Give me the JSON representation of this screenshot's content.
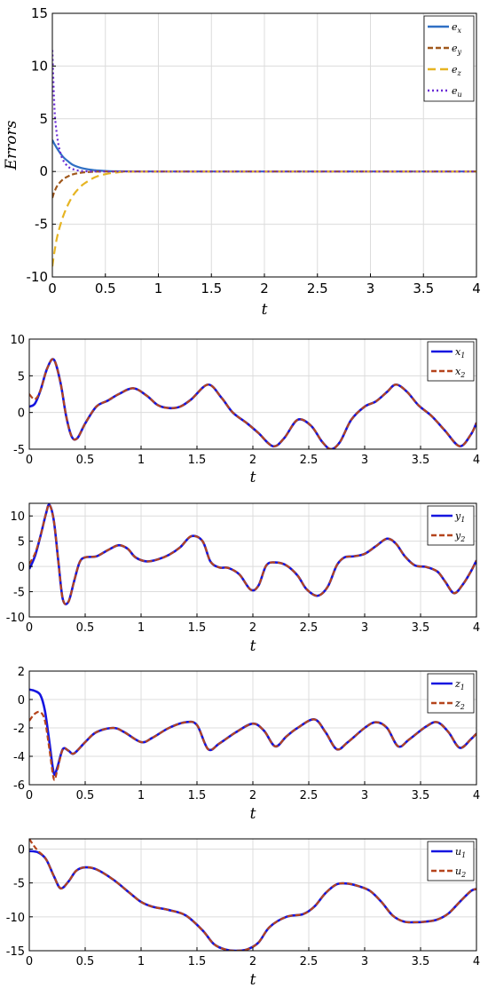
{
  "chart_data": [
    {
      "type": "line",
      "xlabel": "t",
      "ylabel": "Errors",
      "xlim": [
        0,
        4
      ],
      "ylim": [
        -10,
        15
      ],
      "xticks": [
        "0",
        "0.5",
        "1",
        "1.5",
        "2",
        "2.5",
        "3",
        "3.5",
        "4"
      ],
      "yticks": [
        "-10",
        "-5",
        "0",
        "5",
        "10",
        "15"
      ],
      "grid": true,
      "legend_position": "top-right",
      "series": [
        {
          "name": "e",
          "sub": "x",
          "color": "#2f6fc4",
          "style": "solid",
          "x": [
            0,
            0.02,
            0.05,
            0.1,
            0.15,
            0.2,
            0.3,
            0.4,
            0.5,
            0.6,
            1,
            2,
            3,
            4
          ],
          "y": [
            3.0,
            2.6,
            2.1,
            1.4,
            0.95,
            0.6,
            0.27,
            0.12,
            0.05,
            0.02,
            0,
            0,
            0,
            0
          ]
        },
        {
          "name": "e",
          "sub": "y",
          "color": "#a0581c",
          "style": "dash",
          "x": [
            0,
            0.02,
            0.05,
            0.1,
            0.15,
            0.2,
            0.3,
            0.4,
            0.5,
            1,
            2,
            3,
            4
          ],
          "y": [
            -2.5,
            -1.9,
            -1.3,
            -0.75,
            -0.45,
            -0.25,
            -0.08,
            -0.02,
            0,
            0,
            0,
            0,
            0
          ]
        },
        {
          "name": "e",
          "sub": "z",
          "color": "#e6b422",
          "style": "longdash",
          "x": [
            0,
            0.02,
            0.05,
            0.1,
            0.15,
            0.2,
            0.25,
            0.3,
            0.4,
            0.5,
            0.6,
            0.7,
            1,
            2,
            3,
            4
          ],
          "y": [
            -9.0,
            -7.6,
            -6.0,
            -4.3,
            -3.1,
            -2.2,
            -1.6,
            -1.15,
            -0.55,
            -0.25,
            -0.1,
            -0.03,
            0,
            0,
            0,
            0
          ]
        },
        {
          "name": "e",
          "sub": "u",
          "color": "#6a2bd6",
          "style": "dot",
          "x": [
            0,
            0.01,
            0.02,
            0.03,
            0.05,
            0.07,
            0.1,
            0.15,
            0.2,
            0.25,
            0.3,
            0.4,
            0.5,
            1,
            2,
            3,
            4
          ],
          "y": [
            11.5,
            8.5,
            6.0,
            4.6,
            3.0,
            2.0,
            1.1,
            0.45,
            0.2,
            0.08,
            0.03,
            0,
            0,
            0,
            0,
            0,
            0
          ]
        }
      ]
    },
    {
      "type": "line",
      "xlabel": "t",
      "xlim": [
        0,
        4
      ],
      "ylim": [
        -5,
        10
      ],
      "xticks": [
        "0",
        "0.5",
        "1",
        "1.5",
        "2",
        "2.5",
        "3",
        "3.5",
        "4"
      ],
      "yticks": [
        "-5",
        "0",
        "5",
        "10"
      ],
      "grid": true,
      "legend_position": "top-right",
      "series": [
        {
          "name": "x",
          "sub": "1",
          "color": "#1515e0",
          "style": "solid",
          "x": [
            0,
            0.05,
            0.1,
            0.16,
            0.22,
            0.28,
            0.33,
            0.38,
            0.43,
            0.5,
            0.6,
            0.7,
            0.8,
            0.93,
            1.05,
            1.15,
            1.25,
            1.35,
            1.45,
            1.6,
            1.72,
            1.82,
            1.95,
            2.05,
            2.18,
            2.28,
            2.4,
            2.52,
            2.62,
            2.7,
            2.78,
            2.88,
            3.0,
            3.1,
            3.2,
            3.28,
            3.38,
            3.48,
            3.6,
            3.72,
            3.85,
            3.95,
            4.0
          ],
          "y": [
            0.8,
            1.2,
            3.0,
            6.0,
            7.2,
            4.0,
            -0.5,
            -3.3,
            -3.5,
            -1.5,
            0.8,
            1.6,
            2.5,
            3.3,
            2.3,
            1.0,
            0.6,
            0.8,
            1.8,
            3.8,
            2.0,
            0.0,
            -1.5,
            -2.8,
            -4.6,
            -3.5,
            -1.0,
            -1.8,
            -4.0,
            -5.0,
            -4.0,
            -1.0,
            0.8,
            1.5,
            2.8,
            3.8,
            2.8,
            1.0,
            -0.5,
            -2.5,
            -4.6,
            -3.0,
            -1.4
          ]
        },
        {
          "name": "x",
          "sub": "2",
          "color": "#b5441c",
          "style": "dash",
          "x": [
            0,
            0.05,
            0.1,
            0.16,
            0.22,
            0.28,
            0.33,
            0.38,
            0.43,
            0.5,
            0.6,
            0.7,
            0.8,
            0.93,
            1.05,
            1.15,
            1.25,
            1.35,
            1.45,
            1.6,
            1.72,
            1.82,
            1.95,
            2.05,
            2.18,
            2.28,
            2.4,
            2.52,
            2.62,
            2.7,
            2.78,
            2.88,
            3.0,
            3.1,
            3.2,
            3.28,
            3.38,
            3.48,
            3.6,
            3.72,
            3.85,
            3.95,
            4.0
          ],
          "y": [
            2.5,
            1.8,
            3.0,
            6.0,
            7.2,
            4.0,
            -0.5,
            -3.3,
            -3.5,
            -1.5,
            0.8,
            1.6,
            2.5,
            3.3,
            2.3,
            1.0,
            0.6,
            0.8,
            1.8,
            3.8,
            2.0,
            0.0,
            -1.5,
            -2.8,
            -4.6,
            -3.5,
            -1.0,
            -1.8,
            -4.0,
            -5.0,
            -4.0,
            -1.0,
            0.8,
            1.5,
            2.8,
            3.8,
            2.8,
            1.0,
            -0.5,
            -2.5,
            -4.6,
            -3.0,
            -1.4
          ]
        }
      ]
    },
    {
      "type": "line",
      "xlabel": "t",
      "xlim": [
        0,
        4
      ],
      "ylim": [
        -10,
        12.5
      ],
      "xticks": [
        "0",
        "0.5",
        "1",
        "1.5",
        "2",
        "2.5",
        "3",
        "3.5",
        "4"
      ],
      "yticks": [
        "-10",
        "-5",
        "0",
        "5",
        "10"
      ],
      "grid": true,
      "legend_position": "top-right",
      "series": [
        {
          "name": "y",
          "sub": "1",
          "color": "#1515e0",
          "style": "solid",
          "x": [
            0,
            0.05,
            0.1,
            0.15,
            0.18,
            0.22,
            0.26,
            0.3,
            0.35,
            0.4,
            0.45,
            0.5,
            0.6,
            0.7,
            0.8,
            0.88,
            0.95,
            1.05,
            1.15,
            1.25,
            1.35,
            1.45,
            1.55,
            1.62,
            1.7,
            1.78,
            1.88,
            1.98,
            2.05,
            2.12,
            2.2,
            2.3,
            2.4,
            2.48,
            2.58,
            2.67,
            2.75,
            2.82,
            2.9,
            3.0,
            3.1,
            3.2,
            3.28,
            3.36,
            3.45,
            3.55,
            3.65,
            3.72,
            3.8,
            3.88,
            3.95,
            4.0
          ],
          "y": [
            -0.5,
            2.0,
            6.0,
            10.5,
            12.2,
            9.0,
            1.0,
            -6.5,
            -7.0,
            -3.0,
            0.8,
            1.8,
            2.0,
            3.2,
            4.2,
            3.5,
            1.8,
            1.0,
            1.4,
            2.3,
            3.8,
            6.0,
            5.0,
            1.0,
            -0.2,
            -0.3,
            -1.6,
            -4.6,
            -3.8,
            0.2,
            0.8,
            0.2,
            -1.8,
            -4.5,
            -5.8,
            -4.0,
            0.2,
            1.8,
            2.0,
            2.5,
            4.0,
            5.5,
            4.5,
            2.0,
            0.2,
            -0.1,
            -1.0,
            -3.0,
            -5.3,
            -3.5,
            -1.0,
            1.2
          ]
        },
        {
          "name": "y",
          "sub": "2",
          "color": "#b5441c",
          "style": "dash",
          "x": [
            0,
            0.05,
            0.1,
            0.15,
            0.18,
            0.22,
            0.26,
            0.3,
            0.35,
            0.4,
            0.45,
            0.5,
            0.6,
            0.7,
            0.8,
            0.88,
            0.95,
            1.05,
            1.15,
            1.25,
            1.35,
            1.45,
            1.55,
            1.62,
            1.7,
            1.78,
            1.88,
            1.98,
            2.05,
            2.12,
            2.2,
            2.3,
            2.4,
            2.48,
            2.58,
            2.67,
            2.75,
            2.82,
            2.9,
            3.0,
            3.1,
            3.2,
            3.28,
            3.36,
            3.45,
            3.55,
            3.65,
            3.72,
            3.8,
            3.88,
            3.95,
            4.0
          ],
          "y": [
            0.5,
            2.5,
            6.0,
            10.5,
            12.2,
            9.0,
            1.0,
            -6.5,
            -7.0,
            -3.0,
            0.8,
            1.8,
            2.0,
            3.2,
            4.2,
            3.5,
            1.8,
            1.0,
            1.4,
            2.3,
            3.8,
            6.0,
            5.0,
            1.0,
            -0.2,
            -0.3,
            -1.6,
            -4.6,
            -3.8,
            0.2,
            0.8,
            0.2,
            -1.8,
            -4.5,
            -5.8,
            -4.0,
            0.2,
            1.8,
            2.0,
            2.5,
            4.0,
            5.5,
            4.5,
            2.0,
            0.2,
            -0.1,
            -1.0,
            -3.0,
            -5.3,
            -3.5,
            -1.0,
            1.2
          ]
        }
      ]
    },
    {
      "type": "line",
      "xlabel": "t",
      "xlim": [
        0,
        4
      ],
      "ylim": [
        -6,
        2
      ],
      "xticks": [
        "0",
        "0.5",
        "1",
        "1.5",
        "2",
        "2.5",
        "3",
        "3.5",
        "4"
      ],
      "yticks": [
        "-6",
        "-4",
        "-2",
        "0",
        "2"
      ],
      "grid": true,
      "legend_position": "top-right",
      "series": [
        {
          "name": "z",
          "sub": "1",
          "color": "#1515e0",
          "style": "solid",
          "x": [
            0,
            0.05,
            0.1,
            0.14,
            0.18,
            0.22,
            0.25,
            0.3,
            0.35,
            0.4,
            0.5,
            0.6,
            0.75,
            0.85,
            1.0,
            1.1,
            1.25,
            1.4,
            1.5,
            1.6,
            1.7,
            1.85,
            2.0,
            2.1,
            2.2,
            2.3,
            2.4,
            2.55,
            2.65,
            2.75,
            2.85,
            3.0,
            3.1,
            3.2,
            3.3,
            3.4,
            3.55,
            3.65,
            3.75,
            3.85,
            3.95,
            4.0
          ],
          "y": [
            0.7,
            0.6,
            0.3,
            -0.8,
            -3.0,
            -5.2,
            -4.8,
            -3.5,
            -3.6,
            -3.8,
            -3.0,
            -2.3,
            -2.0,
            -2.3,
            -3.0,
            -2.7,
            -2.0,
            -1.6,
            -1.8,
            -3.5,
            -3.1,
            -2.3,
            -1.7,
            -2.2,
            -3.3,
            -2.6,
            -2.0,
            -1.4,
            -2.3,
            -3.5,
            -3.0,
            -2.0,
            -1.6,
            -2.0,
            -3.3,
            -2.8,
            -1.9,
            -1.6,
            -2.3,
            -3.4,
            -2.8,
            -2.4
          ]
        },
        {
          "name": "z",
          "sub": "2",
          "color": "#b5441c",
          "style": "dash",
          "x": [
            0,
            0.05,
            0.1,
            0.14,
            0.18,
            0.22,
            0.25,
            0.3,
            0.35,
            0.4,
            0.5,
            0.6,
            0.75,
            0.85,
            1.0,
            1.1,
            1.25,
            1.4,
            1.5,
            1.6,
            1.7,
            1.85,
            2.0,
            2.1,
            2.2,
            2.3,
            2.4,
            2.55,
            2.65,
            2.75,
            2.85,
            3.0,
            3.1,
            3.2,
            3.3,
            3.4,
            3.55,
            3.65,
            3.75,
            3.85,
            3.95,
            4.0
          ],
          "y": [
            -1.5,
            -1.0,
            -0.9,
            -1.5,
            -3.5,
            -5.6,
            -5.0,
            -3.5,
            -3.6,
            -3.8,
            -3.0,
            -2.3,
            -2.0,
            -2.3,
            -3.0,
            -2.7,
            -2.0,
            -1.6,
            -1.8,
            -3.5,
            -3.1,
            -2.3,
            -1.7,
            -2.2,
            -3.3,
            -2.6,
            -2.0,
            -1.4,
            -2.3,
            -3.5,
            -3.0,
            -2.0,
            -1.6,
            -2.0,
            -3.3,
            -2.8,
            -1.9,
            -1.6,
            -2.3,
            -3.4,
            -2.8,
            -2.4
          ]
        }
      ]
    },
    {
      "type": "line",
      "xlabel": "t",
      "xlim": [
        0,
        4
      ],
      "ylim": [
        -15,
        1.5
      ],
      "xticks": [
        "0",
        "0.5",
        "1",
        "1.5",
        "2",
        "2.5",
        "3",
        "3.5",
        "4"
      ],
      "yticks": [
        "-15",
        "-10",
        "-5",
        "0"
      ],
      "grid": true,
      "legend_position": "top-right",
      "series": [
        {
          "name": "u",
          "sub": "1",
          "color": "#1515e0",
          "style": "solid",
          "x": [
            0,
            0.08,
            0.15,
            0.22,
            0.28,
            0.35,
            0.42,
            0.5,
            0.6,
            0.75,
            0.9,
            1.0,
            1.1,
            1.25,
            1.4,
            1.55,
            1.65,
            1.75,
            1.85,
            1.95,
            2.05,
            2.15,
            2.3,
            2.45,
            2.55,
            2.65,
            2.75,
            2.85,
            2.95,
            3.05,
            3.15,
            3.25,
            3.35,
            3.45,
            3.55,
            3.65,
            3.75,
            3.85,
            3.95,
            4.0
          ],
          "y": [
            -0.3,
            -0.5,
            -1.5,
            -4.0,
            -5.8,
            -4.8,
            -3.2,
            -2.7,
            -3.0,
            -4.5,
            -6.5,
            -7.8,
            -8.5,
            -9.0,
            -9.8,
            -12.0,
            -14.0,
            -14.8,
            -15.0,
            -14.8,
            -13.8,
            -11.5,
            -10.0,
            -9.6,
            -8.5,
            -6.5,
            -5.2,
            -5.1,
            -5.5,
            -6.2,
            -7.8,
            -9.8,
            -10.7,
            -10.8,
            -10.7,
            -10.4,
            -9.5,
            -7.8,
            -6.2,
            -5.9
          ]
        },
        {
          "name": "u",
          "sub": "2",
          "color": "#b5441c",
          "style": "dash",
          "x": [
            0,
            0.04,
            0.08,
            0.15,
            0.22,
            0.28,
            0.35,
            0.42,
            0.5,
            0.6,
            0.75,
            0.9,
            1.0,
            1.1,
            1.25,
            1.4,
            1.55,
            1.65,
            1.75,
            1.85,
            1.95,
            2.05,
            2.15,
            2.3,
            2.45,
            2.55,
            2.65,
            2.75,
            2.85,
            2.95,
            3.05,
            3.15,
            3.25,
            3.35,
            3.45,
            3.55,
            3.65,
            3.75,
            3.85,
            3.95,
            4.0
          ],
          "y": [
            1.5,
            0.5,
            -0.3,
            -1.5,
            -4.0,
            -5.8,
            -4.8,
            -3.2,
            -2.7,
            -3.0,
            -4.5,
            -6.5,
            -7.8,
            -8.5,
            -9.0,
            -9.8,
            -12.0,
            -14.0,
            -14.8,
            -15.0,
            -14.8,
            -13.8,
            -11.5,
            -10.0,
            -9.6,
            -8.5,
            -6.5,
            -5.2,
            -5.1,
            -5.5,
            -6.2,
            -7.8,
            -9.8,
            -10.7,
            -10.8,
            -10.7,
            -10.4,
            -9.5,
            -7.8,
            -6.2,
            -5.9
          ]
        }
      ]
    }
  ]
}
